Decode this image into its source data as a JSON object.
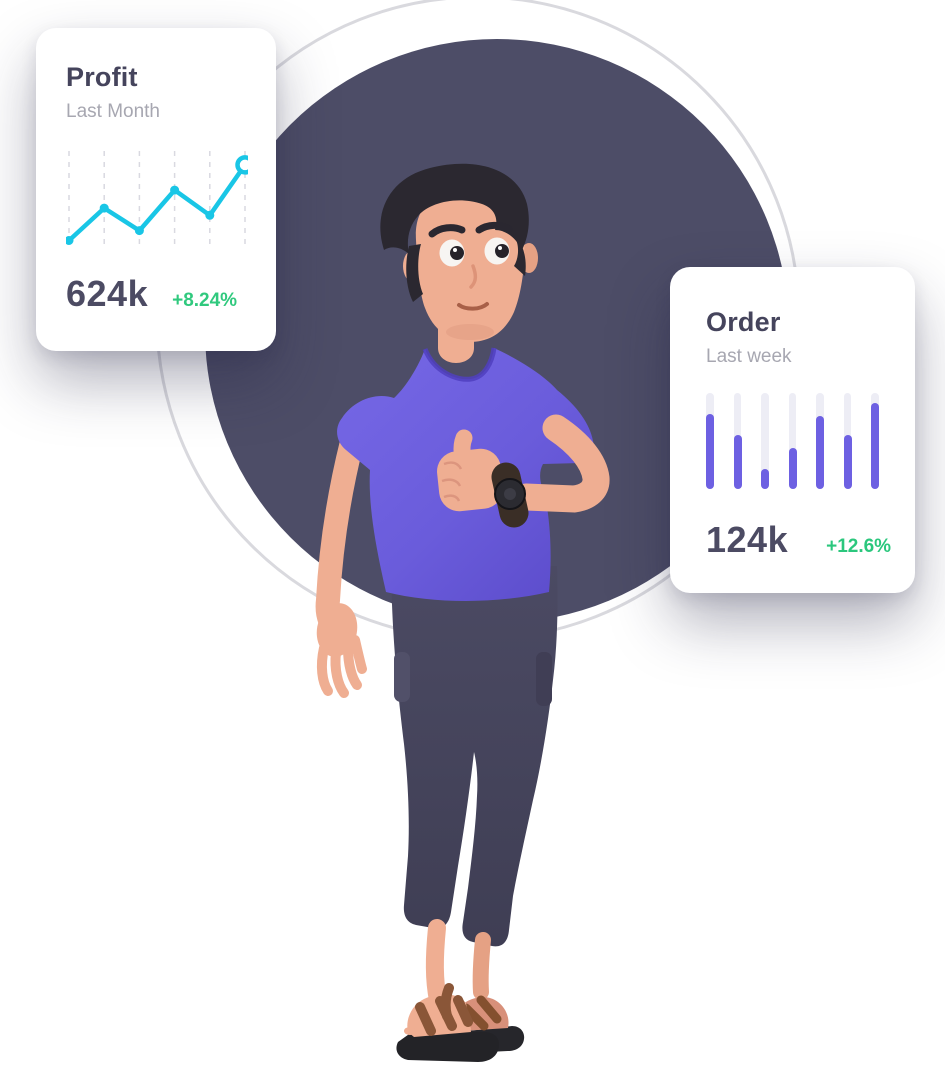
{
  "background": {
    "page_color": "#ffffff",
    "dark_circle_color": "#4d4d67",
    "ring_color": "#d9d9de"
  },
  "profit_card": {
    "title": "Profit",
    "subtitle": "Last Month",
    "value": "624k",
    "change": "+8.24%",
    "change_color": "#30c97e",
    "accent_color": "#19c6e6",
    "gridline_color": "#d9d9e1"
  },
  "order_card": {
    "title": "Order",
    "subtitle": "Last week",
    "value": "124k",
    "change": "+12.6%",
    "change_color": "#2bc77d",
    "bar_color": "#6d60e2",
    "track_color": "#ededf5"
  },
  "chart_data": [
    {
      "type": "line",
      "title": "Profit",
      "subtitle": "Last Month",
      "x": [
        1,
        2,
        3,
        4,
        5,
        6
      ],
      "values": [
        5,
        41,
        16,
        61,
        33,
        89
      ],
      "ylim": [
        0,
        100
      ],
      "value_label": "624k",
      "change_label": "+8.24%",
      "color": "#19c6e6",
      "grid": "dashed-vertical",
      "legend": "none",
      "last_point_style": "open-ring",
      "point_style": "filled-dot"
    },
    {
      "type": "bar",
      "title": "Order",
      "subtitle": "Last week",
      "categories": [
        1,
        2,
        3,
        4,
        5,
        6,
        7
      ],
      "values": [
        78,
        56,
        21,
        42,
        76,
        56,
        89
      ],
      "ylim": [
        0,
        100
      ],
      "value_label": "124k",
      "change_label": "+12.6%",
      "color": "#6d60e2",
      "track_color": "#ededf5",
      "grid": "off",
      "legend": "none",
      "bar_style": "rounded-pill-on-track"
    }
  ],
  "character": {
    "pose": "thumbs-up",
    "shirt_color": "#6a5cdb",
    "pants_color": "#47465e",
    "skin_color": "#efae92",
    "hair_color": "#2b2830",
    "accessories": "wristwatch, brown sandals"
  }
}
